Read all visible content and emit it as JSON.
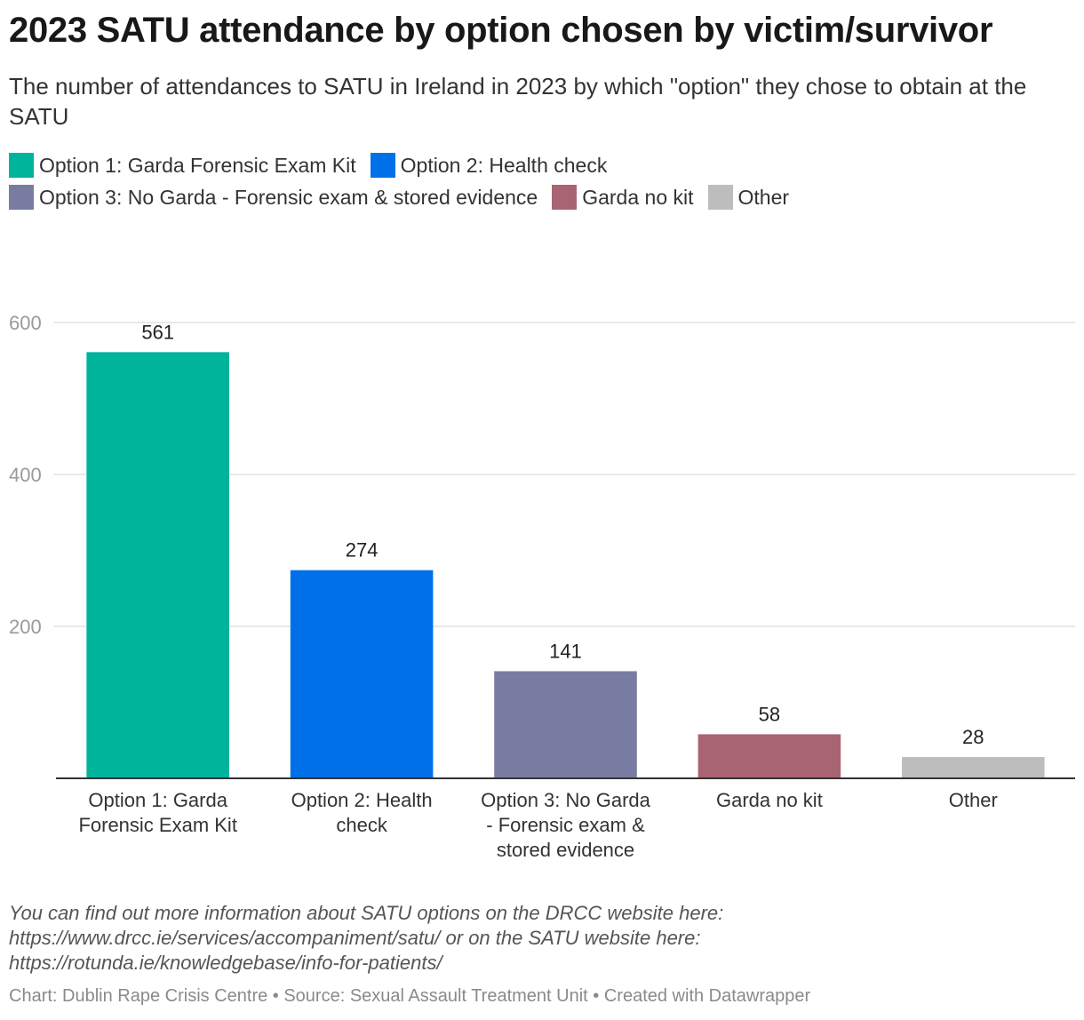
{
  "header": {
    "title": "2023 SATU attendance by option chosen by victim/survivor",
    "subtitle": "The number of attendances to SATU in Ireland in 2023 by which \"option\" they chose to obtain at the SATU"
  },
  "chart_data": {
    "type": "bar",
    "categories": [
      "Option 1: Garda Forensic Exam Kit",
      "Option 2: Health check",
      "Option 3: No Garda - Forensic exam & stored evidence",
      "Garda no kit",
      "Other"
    ],
    "category_label_lines": [
      [
        "Option 1: Garda",
        "Forensic Exam Kit"
      ],
      [
        "Option 2: Health",
        "check"
      ],
      [
        "Option 3: No Garda",
        "- Forensic exam &",
        "stored evidence"
      ],
      [
        "Garda no kit"
      ],
      [
        "Other"
      ]
    ],
    "values": [
      561,
      274,
      141,
      58,
      28
    ],
    "colors": [
      "#00b39b",
      "#0070e8",
      "#787ca1",
      "#a86472",
      "#bdbdbd"
    ],
    "yticks": [
      200,
      400,
      600
    ],
    "ylim": [
      0,
      600
    ],
    "grid": true,
    "legend_placement": "top-left",
    "legend": [
      {
        "label": "Option 1: Garda Forensic Exam Kit",
        "color": "#00b39b"
      },
      {
        "label": "Option 2: Health check",
        "color": "#0070e8"
      },
      {
        "label": "Option 3: No Garda - Forensic exam & stored evidence",
        "color": "#787ca1"
      },
      {
        "label": "Garda no kit",
        "color": "#a86472"
      },
      {
        "label": "Other",
        "color": "#bdbdbd"
      }
    ]
  },
  "notes": [
    "You can find out more information about SATU options on the DRCC website here:",
    "https://www.drcc.ie/services/accompaniment/satu/ or on the SATU website here:",
    "https://rotunda.ie/knowledgebase/info-for-patients/"
  ],
  "footer": "Chart: Dublin Rape Crisis Centre • Source: Sexual Assault Treatment Unit  • Created with Datawrapper"
}
